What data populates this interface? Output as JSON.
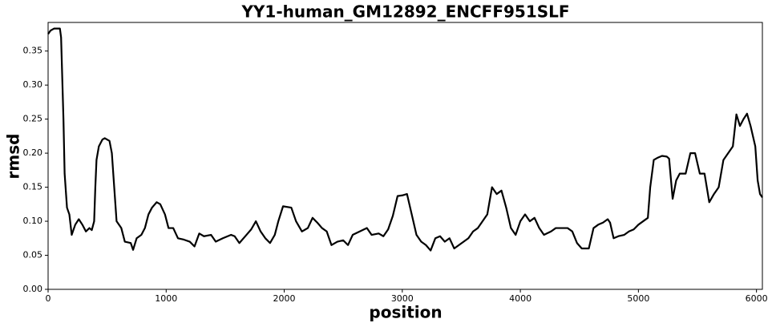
{
  "chart_data": {
    "type": "line",
    "title": "YY1-human_GM12892_ENCFF951SLF",
    "x_label": "position",
    "y_label": "rmsd",
    "xlim": [
      0,
      6050
    ],
    "ylim": [
      0,
      0.392
    ],
    "xticks": [
      0,
      1000,
      2000,
      3000,
      4000,
      5000,
      6000
    ],
    "yticks": [
      {
        "value": 0,
        "label": "0.00"
      },
      {
        "value": 0.05,
        "label": "0.05"
      },
      {
        "value": 0.1,
        "label": "0.10"
      },
      {
        "value": 0.15,
        "label": "0.15"
      },
      {
        "value": 0.2,
        "label": "0.20"
      },
      {
        "value": 0.25,
        "label": "0.25"
      },
      {
        "value": 0.3,
        "label": "0.30"
      },
      {
        "value": 0.35,
        "label": "0.35"
      }
    ],
    "x": [
      0,
      20,
      50,
      100,
      110,
      130,
      140,
      160,
      180,
      200,
      230,
      260,
      290,
      320,
      350,
      370,
      390,
      400,
      410,
      430,
      460,
      480,
      520,
      540,
      560,
      580,
      620,
      650,
      700,
      720,
      750,
      790,
      820,
      850,
      880,
      920,
      950,
      990,
      1020,
      1060,
      1100,
      1150,
      1200,
      1240,
      1280,
      1320,
      1380,
      1420,
      1480,
      1550,
      1580,
      1620,
      1680,
      1720,
      1760,
      1800,
      1840,
      1880,
      1920,
      1950,
      1990,
      2060,
      2100,
      2150,
      2200,
      2240,
      2280,
      2320,
      2360,
      2400,
      2450,
      2500,
      2540,
      2580,
      2640,
      2700,
      2740,
      2800,
      2840,
      2880,
      2920,
      2960,
      3000,
      3040,
      3080,
      3120,
      3160,
      3200,
      3240,
      3280,
      3320,
      3360,
      3400,
      3440,
      3480,
      3520,
      3560,
      3600,
      3640,
      3680,
      3720,
      3760,
      3800,
      3840,
      3880,
      3920,
      3960,
      4000,
      4040,
      4080,
      4120,
      4160,
      4200,
      4260,
      4300,
      4400,
      4440,
      4480,
      4520,
      4580,
      4620,
      4660,
      4700,
      4740,
      4760,
      4790,
      4830,
      4880,
      4920,
      4960,
      5000,
      5040,
      5080,
      5100,
      5130,
      5160,
      5200,
      5240,
      5260,
      5290,
      5320,
      5350,
      5400,
      5440,
      5480,
      5520,
      5560,
      5600,
      5640,
      5680,
      5720,
      5760,
      5800,
      5830,
      5860,
      5890,
      5920,
      5950,
      5990,
      6010,
      6030,
      6050
    ],
    "series": [
      {
        "name": "rmsd",
        "color": "#000000",
        "values": [
          0.375,
          0.38,
          0.383,
          0.383,
          0.37,
          0.25,
          0.17,
          0.12,
          0.11,
          0.08,
          0.095,
          0.103,
          0.095,
          0.085,
          0.09,
          0.087,
          0.1,
          0.15,
          0.19,
          0.21,
          0.22,
          0.222,
          0.218,
          0.2,
          0.15,
          0.1,
          0.09,
          0.07,
          0.068,
          0.058,
          0.075,
          0.08,
          0.09,
          0.11,
          0.12,
          0.128,
          0.125,
          0.11,
          0.09,
          0.09,
          0.075,
          0.073,
          0.07,
          0.063,
          0.082,
          0.078,
          0.08,
          0.07,
          0.075,
          0.08,
          0.078,
          0.068,
          0.08,
          0.088,
          0.1,
          0.085,
          0.075,
          0.068,
          0.08,
          0.1,
          0.122,
          0.12,
          0.1,
          0.085,
          0.09,
          0.105,
          0.098,
          0.09,
          0.085,
          0.065,
          0.07,
          0.072,
          0.065,
          0.08,
          0.085,
          0.09,
          0.08,
          0.082,
          0.078,
          0.088,
          0.108,
          0.137,
          0.138,
          0.14,
          0.11,
          0.08,
          0.07,
          0.065,
          0.057,
          0.075,
          0.078,
          0.07,
          0.075,
          0.06,
          0.065,
          0.07,
          0.075,
          0.085,
          0.09,
          0.1,
          0.11,
          0.15,
          0.14,
          0.145,
          0.12,
          0.09,
          0.08,
          0.1,
          0.11,
          0.1,
          0.105,
          0.09,
          0.08,
          0.085,
          0.09,
          0.09,
          0.085,
          0.068,
          0.06,
          0.06,
          0.09,
          0.095,
          0.098,
          0.103,
          0.098,
          0.075,
          0.078,
          0.08,
          0.085,
          0.088,
          0.095,
          0.1,
          0.105,
          0.15,
          0.19,
          0.193,
          0.196,
          0.195,
          0.192,
          0.133,
          0.16,
          0.17,
          0.17,
          0.2,
          0.2,
          0.17,
          0.17,
          0.128,
          0.14,
          0.15,
          0.19,
          0.2,
          0.21,
          0.257,
          0.24,
          0.25,
          0.258,
          0.24,
          0.21,
          0.16,
          0.14,
          0.135
        ]
      }
    ]
  }
}
